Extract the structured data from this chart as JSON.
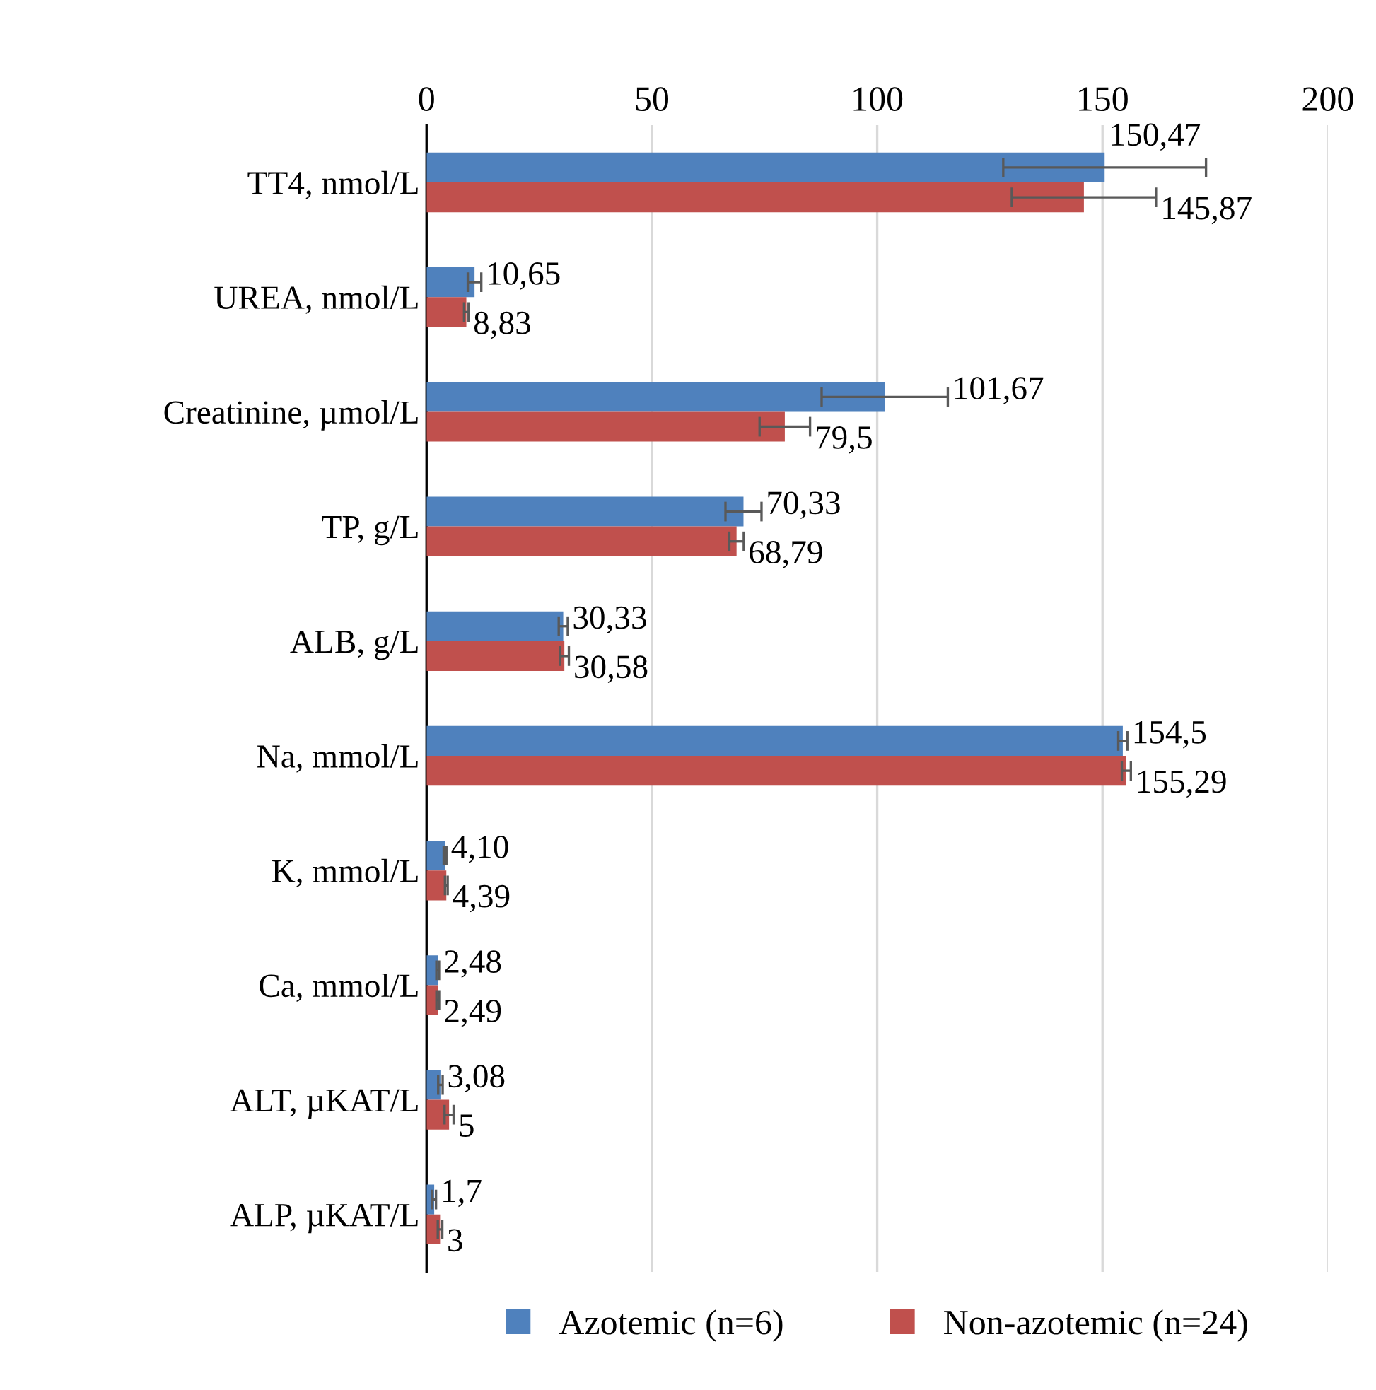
{
  "chart_data": {
    "type": "bar",
    "orientation": "horizontal",
    "categories": [
      "TT4, nmol/L",
      "UREA, nmol/L",
      "Creatinine, µmol/L",
      "TP, g/L",
      "ALB, g/L",
      "Na, mmol/L",
      "K, mmol/L",
      "Ca, mmol/L",
      "ALT, µKAT/L",
      "ALP, µKAT/L"
    ],
    "series": [
      {
        "name": "Azotemic (n=6)",
        "color": "#4f81bd",
        "values": [
          150.47,
          10.65,
          101.67,
          70.33,
          30.33,
          154.5,
          4.1,
          2.48,
          3.08,
          1.7
        ],
        "value_labels": [
          "150,47",
          "10,65",
          "101,67",
          "70,33",
          "30,33",
          "154,5",
          "4,10",
          "2,48",
          "3,08",
          "1,7"
        ],
        "errors": [
          22.5,
          1.5,
          14,
          4,
          1,
          1,
          0.3,
          0.3,
          0.5,
          0.4
        ]
      },
      {
        "name": "Non-azotemic (n=24)",
        "color": "#c0504d",
        "values": [
          145.87,
          8.83,
          79.5,
          68.79,
          30.58,
          155.29,
          4.39,
          2.49,
          5,
          3
        ],
        "value_labels": [
          "145,87",
          "8,83",
          "79,5",
          "68,79",
          "30,58",
          "155,29",
          "4,39",
          "2,49",
          "5",
          "3"
        ],
        "errors": [
          16,
          0.5,
          5.6,
          1.6,
          1,
          1,
          0.3,
          0.3,
          1,
          0.5
        ]
      }
    ],
    "xlim": [
      0,
      200
    ],
    "xticks": [
      0,
      50,
      100,
      150,
      200
    ],
    "grid": "x",
    "legend": "bottom"
  }
}
